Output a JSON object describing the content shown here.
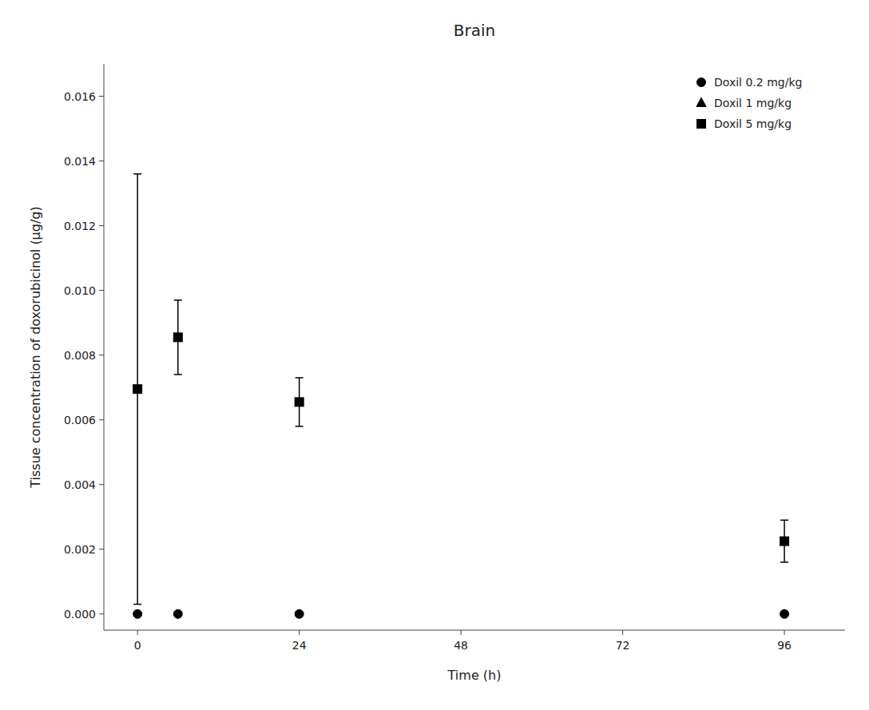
{
  "chart_data": {
    "type": "scatter",
    "title": "Brain",
    "x_label": "Time (h)",
    "y_label": "Tissue concentration of doxorubicinol (μg/g)",
    "xlim": [
      -5,
      105
    ],
    "ylim": [
      -0.0005,
      0.017
    ],
    "xticks": [
      0,
      24,
      48,
      72,
      96
    ],
    "yticks": [
      {
        "value": 0.0,
        "label": "0.000"
      },
      0.002,
      0.004,
      0.006,
      0.008,
      {
        "value": 0.01,
        "label": "0.010"
      },
      0.012,
      0.014,
      0.016
    ],
    "grid": false,
    "legend": "upper right",
    "series": [
      {
        "name": "Doxil 0.2 mg/kg",
        "marker": "circle",
        "color": "#000000",
        "x": [
          0,
          6,
          24,
          96
        ],
        "values": [
          0.0,
          0.0,
          0.0,
          0.0
        ],
        "errors": [
          0.0,
          0.0,
          0.0,
          0.0
        ]
      },
      {
        "name": "Doxil 1 mg/kg",
        "marker": "triangle",
        "color": "#000000",
        "x": [],
        "values": [],
        "errors": []
      },
      {
        "name": "Doxil 5 mg/kg",
        "marker": "square",
        "color": "#000000",
        "x": [
          0,
          6,
          24,
          96
        ],
        "values": [
          0.00695,
          0.00855,
          0.00655,
          0.00225
        ],
        "errors": [
          0.00665,
          0.00115,
          0.00075,
          0.00065
        ]
      }
    ]
  }
}
